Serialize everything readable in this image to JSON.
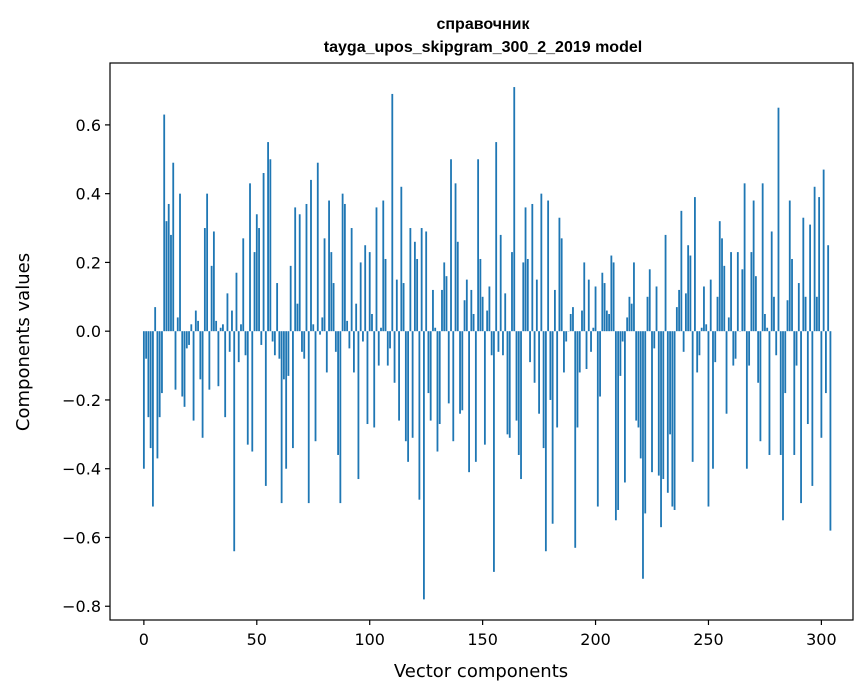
{
  "chart_data": {
    "type": "bar",
    "title_line1": "справочник",
    "title_line2": "tayga_upos_skipgram_300_2_2019 model",
    "xlabel": "Vector components",
    "ylabel": "Components values",
    "xlim": [
      -15,
      314
    ],
    "ylim": [
      -0.84,
      0.78
    ],
    "xticks": [
      0,
      50,
      100,
      150,
      200,
      250,
      300
    ],
    "xtick_labels": [
      "0",
      "50",
      "100",
      "150",
      "200",
      "250",
      "300"
    ],
    "yticks": [
      -0.8,
      -0.6,
      -0.4,
      -0.2,
      0.0,
      0.2,
      0.4,
      0.6
    ],
    "ytick_labels": [
      "−0.8",
      "−0.6",
      "−0.4",
      "−0.2",
      "0.0",
      "0.2",
      "0.4",
      "0.6"
    ],
    "bar_color": "#1f77b4",
    "grid": false,
    "x_start": 0,
    "values": [
      -0.4,
      -0.08,
      -0.25,
      -0.34,
      -0.51,
      0.07,
      -0.37,
      -0.25,
      -0.18,
      0.63,
      0.32,
      0.37,
      0.28,
      0.49,
      -0.17,
      0.04,
      0.4,
      -0.19,
      -0.22,
      -0.05,
      -0.04,
      0.02,
      -0.26,
      0.06,
      0.03,
      -0.14,
      -0.31,
      0.3,
      0.4,
      -0.17,
      0.19,
      0.29,
      0.03,
      -0.16,
      0.01,
      0.02,
      -0.25,
      0.11,
      -0.06,
      0.06,
      -0.64,
      0.17,
      -0.09,
      0.02,
      0.27,
      -0.07,
      -0.33,
      0.43,
      -0.35,
      0.23,
      0.34,
      0.3,
      -0.04,
      0.46,
      -0.45,
      0.55,
      0.5,
      -0.03,
      -0.07,
      0.14,
      -0.08,
      -0.5,
      -0.14,
      -0.4,
      -0.13,
      0.19,
      -0.34,
      0.36,
      0.08,
      0.34,
      -0.06,
      -0.08,
      0.37,
      -0.5,
      0.44,
      0.02,
      -0.32,
      0.49,
      -0.01,
      0.04,
      0.27,
      -0.12,
      0.38,
      0.23,
      0.14,
      -0.06,
      -0.36,
      -0.5,
      0.4,
      0.37,
      0.03,
      -0.05,
      0.3,
      -0.12,
      0.08,
      -0.43,
      0.2,
      -0.03,
      0.25,
      -0.27,
      0.23,
      0.05,
      -0.28,
      0.36,
      -0.1,
      0.01,
      0.38,
      0.21,
      -0.1,
      -0.05,
      0.69,
      -0.15,
      0.15,
      -0.26,
      0.42,
      0.14,
      -0.32,
      -0.38,
      0.3,
      -0.31,
      0.26,
      0.21,
      -0.49,
      0.3,
      -0.78,
      0.29,
      -0.18,
      -0.26,
      0.12,
      0.01,
      -0.35,
      -0.27,
      0.12,
      0.2,
      0.16,
      -0.21,
      0.5,
      -0.32,
      0.43,
      0.26,
      -0.24,
      -0.23,
      0.09,
      0.15,
      -0.41,
      0.12,
      0.05,
      -0.38,
      0.5,
      0.21,
      0.1,
      -0.33,
      0.06,
      0.13,
      -0.07,
      -0.7,
      0.55,
      -0.06,
      0.28,
      -0.07,
      0.11,
      -0.3,
      -0.31,
      0.23,
      0.71,
      -0.26,
      -0.36,
      -0.43,
      0.2,
      0.36,
      0.21,
      -0.09,
      0.37,
      -0.15,
      0.15,
      -0.24,
      0.4,
      -0.34,
      -0.64,
      0.38,
      -0.2,
      -0.56,
      0.12,
      -0.28,
      0.33,
      0.27,
      -0.12,
      -0.03,
      0.0,
      0.05,
      0.07,
      -0.63,
      -0.28,
      -0.12,
      0.06,
      0.2,
      -0.11,
      0.15,
      -0.06,
      0.01,
      0.13,
      -0.51,
      -0.19,
      0.17,
      0.14,
      0.06,
      0.05,
      0.22,
      0.2,
      -0.55,
      -0.52,
      -0.13,
      -0.03,
      -0.44,
      0.04,
      0.1,
      0.08,
      0.2,
      -0.26,
      -0.28,
      -0.37,
      -0.72,
      -0.53,
      0.1,
      0.18,
      -0.41,
      -0.05,
      0.13,
      -0.42,
      -0.57,
      -0.43,
      0.28,
      -0.47,
      -0.3,
      -0.51,
      -0.52,
      0.07,
      0.12,
      0.35,
      -0.06,
      0.11,
      0.25,
      0.22,
      -0.38,
      0.39,
      -0.12,
      -0.07,
      0.01,
      0.13,
      0.02,
      -0.51,
      0.15,
      -0.4,
      -0.09,
      0.1,
      0.32,
      0.27,
      0.19,
      -0.24,
      0.04,
      0.23,
      -0.1,
      -0.08,
      0.23,
      0.0,
      0.18,
      0.43,
      -0.4,
      -0.1,
      0.23,
      0.38,
      0.16,
      -0.15,
      -0.32,
      0.43,
      0.05,
      0.01,
      -0.36,
      0.29,
      0.1,
      -0.07,
      0.65,
      -0.36,
      -0.55,
      -0.18,
      0.09,
      0.38,
      0.21,
      -0.36,
      -0.1,
      0.14,
      -0.5,
      0.33,
      0.1,
      -0.27,
      0.31,
      -0.45,
      0.42,
      0.1,
      0.39,
      -0.31,
      0.47,
      -0.18,
      0.25,
      -0.58
    ]
  }
}
